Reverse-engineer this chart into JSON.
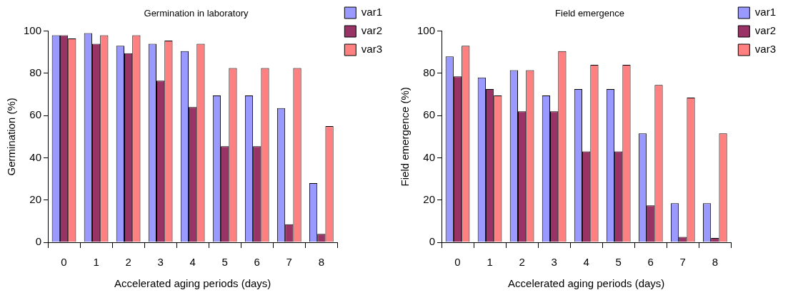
{
  "chart_data": [
    {
      "type": "bar",
      "title": "Germination in laboratory",
      "xlabel": "Accelerated aging periods (days)",
      "ylabel": "Germination (%)",
      "categories": [
        "0",
        "1",
        "2",
        "3",
        "4",
        "5",
        "6",
        "7",
        "8"
      ],
      "series": [
        {
          "name": "var1",
          "color": "#9999ff",
          "values": [
            98,
            99,
            93,
            94,
            90.5,
            69.5,
            69.5,
            63.5,
            28
          ]
        },
        {
          "name": "var2",
          "color": "#993366",
          "values": [
            98,
            94,
            89.5,
            76.5,
            64,
            45.5,
            45.5,
            8.5,
            4
          ]
        },
        {
          "name": "var3",
          "color": "#ff8080",
          "values": [
            96.5,
            98,
            98,
            95.5,
            94,
            82.5,
            82.5,
            82.5,
            55
          ]
        }
      ],
      "ylim": [
        0,
        100
      ],
      "yticks": [
        0,
        20,
        40,
        60,
        80,
        100
      ],
      "grid": false,
      "legend": "top right"
    },
    {
      "type": "bar",
      "title": "Field emergence",
      "xlabel": "Accelerated aging periods (days)",
      "ylabel": "Field emergence (%)",
      "categories": [
        "0",
        "1",
        "2",
        "3",
        "4",
        "5",
        "6",
        "7",
        "8"
      ],
      "series": [
        {
          "name": "var1",
          "color": "#9999ff",
          "values": [
            88,
            78,
            81.5,
            69.5,
            72.5,
            72.5,
            51.5,
            18.5,
            18.5
          ]
        },
        {
          "name": "var2",
          "color": "#993366",
          "values": [
            78.5,
            72.5,
            62,
            62,
            43,
            43,
            17.5,
            2.5,
            2
          ]
        },
        {
          "name": "var3",
          "color": "#ff8080",
          "values": [
            93,
            69.5,
            81.5,
            90.5,
            84,
            84,
            74.5,
            68.5,
            51.5
          ]
        }
      ],
      "ylim": [
        0,
        100
      ],
      "yticks": [
        0,
        20,
        40,
        60,
        80,
        100
      ],
      "grid": false,
      "legend": "top right"
    }
  ]
}
